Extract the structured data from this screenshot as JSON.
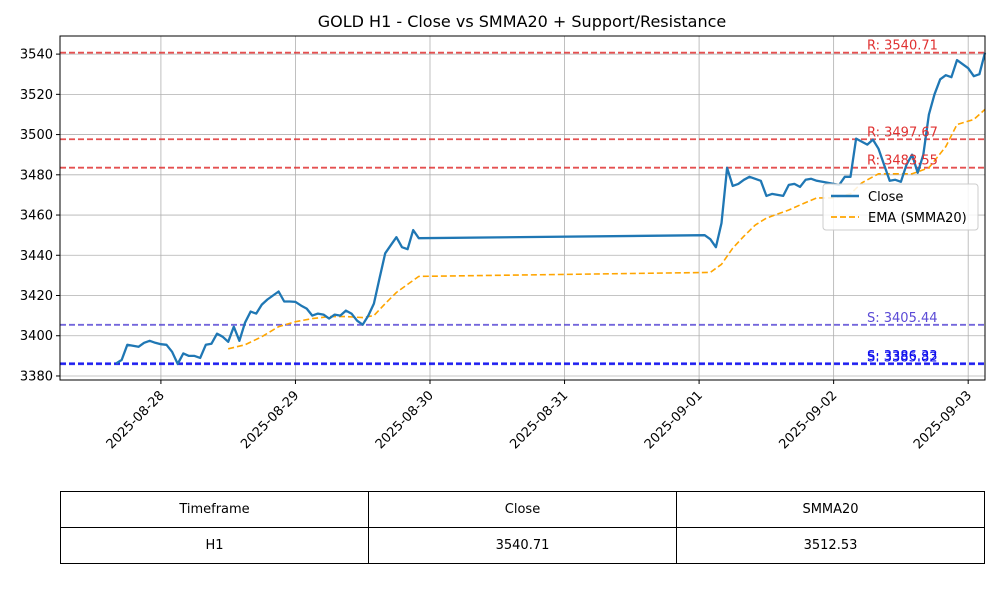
{
  "chart_data": {
    "type": "line",
    "title": "GOLD H1 - Close vs SMMA20 + Support/Resistance",
    "xlabel": "",
    "ylabel": "",
    "x_range": [
      "2025-08-27T06:00",
      "2025-09-03T03:00"
    ],
    "ylim": [
      3378,
      3549
    ],
    "x_ticks": [
      "2025-08-28",
      "2025-08-29",
      "2025-08-30",
      "2025-08-31",
      "2025-09-01",
      "2025-09-02",
      "2025-09-03"
    ],
    "y_ticks": [
      3380,
      3400,
      3420,
      3440,
      3460,
      3480,
      3500,
      3520,
      3540
    ],
    "grid": true,
    "legend_position": "right",
    "series": [
      {
        "name": "Close",
        "color": "#1f77b4",
        "style": "solid",
        "points": [
          [
            "2025-08-27T16:00",
            3386.2
          ],
          [
            "2025-08-27T17:00",
            3388.0
          ],
          [
            "2025-08-27T18:00",
            3395.5
          ],
          [
            "2025-08-27T19:00",
            3395.0
          ],
          [
            "2025-08-27T20:00",
            3394.5
          ],
          [
            "2025-08-27T21:00",
            3396.5
          ],
          [
            "2025-08-27T22:00",
            3397.5
          ],
          [
            "2025-08-27T23:00",
            3396.5
          ],
          [
            "2025-08-28T00:00",
            3395.8
          ],
          [
            "2025-08-28T01:00",
            3395.5
          ],
          [
            "2025-08-28T02:00",
            3392.0
          ],
          [
            "2025-08-28T03:00",
            3386.0
          ],
          [
            "2025-08-28T04:00",
            3391.2
          ],
          [
            "2025-08-28T05:00",
            3390.0
          ],
          [
            "2025-08-28T06:00",
            3390.0
          ],
          [
            "2025-08-28T07:00",
            3389.0
          ],
          [
            "2025-08-28T08:00",
            3395.5
          ],
          [
            "2025-08-28T09:00",
            3396.0
          ],
          [
            "2025-08-28T10:00",
            3401.0
          ],
          [
            "2025-08-28T11:00",
            3399.5
          ],
          [
            "2025-08-28T12:00",
            3397.0
          ],
          [
            "2025-08-28T13:00",
            3404.5
          ],
          [
            "2025-08-28T14:00",
            3397.5
          ],
          [
            "2025-08-28T15:00",
            3406.5
          ],
          [
            "2025-08-28T16:00",
            3412.0
          ],
          [
            "2025-08-28T17:00",
            3411.0
          ],
          [
            "2025-08-28T18:00",
            3415.5
          ],
          [
            "2025-08-28T19:00",
            3418.0
          ],
          [
            "2025-08-28T20:00",
            3420.0
          ],
          [
            "2025-08-28T21:00",
            3422.0
          ],
          [
            "2025-08-28T22:00",
            3417.0
          ],
          [
            "2025-08-28T23:00",
            3417.0
          ],
          [
            "2025-08-29T00:00",
            3416.8
          ],
          [
            "2025-08-29T01:00",
            3415.0
          ],
          [
            "2025-08-29T02:00",
            3413.5
          ],
          [
            "2025-08-29T03:00",
            3410.0
          ],
          [
            "2025-08-29T04:00",
            3411.0
          ],
          [
            "2025-08-29T05:00",
            3410.5
          ],
          [
            "2025-08-29T06:00",
            3408.5
          ],
          [
            "2025-08-29T07:00",
            3410.5
          ],
          [
            "2025-08-29T08:00",
            3410.0
          ],
          [
            "2025-08-29T09:00",
            3412.5
          ],
          [
            "2025-08-29T10:00",
            3411.0
          ],
          [
            "2025-08-29T11:00",
            3407.5
          ],
          [
            "2025-08-29T12:00",
            3405.5
          ],
          [
            "2025-08-29T13:00",
            3410.0
          ],
          [
            "2025-08-29T14:00",
            3416.0
          ],
          [
            "2025-08-29T15:00",
            3428.5
          ],
          [
            "2025-08-29T16:00",
            3441.0
          ],
          [
            "2025-08-29T17:00",
            3445.0
          ],
          [
            "2025-08-29T18:00",
            3449.0
          ],
          [
            "2025-08-29T19:00",
            3444.0
          ],
          [
            "2025-08-29T20:00",
            3443.0
          ],
          [
            "2025-08-29T21:00",
            3452.5
          ],
          [
            "2025-08-29T22:00",
            3448.5
          ],
          [
            "2025-09-01T01:00",
            3450.0
          ],
          [
            "2025-09-01T02:00",
            3448.0
          ],
          [
            "2025-09-01T03:00",
            3444.0
          ],
          [
            "2025-09-01T04:00",
            3456.0
          ],
          [
            "2025-09-01T05:00",
            3483.5
          ],
          [
            "2025-09-01T06:00",
            3474.5
          ],
          [
            "2025-09-01T07:00",
            3475.5
          ],
          [
            "2025-09-01T08:00",
            3477.5
          ],
          [
            "2025-09-01T09:00",
            3479.0
          ],
          [
            "2025-09-01T10:00",
            3478.0
          ],
          [
            "2025-09-01T11:00",
            3477.0
          ],
          [
            "2025-09-01T12:00",
            3469.5
          ],
          [
            "2025-09-01T13:00",
            3470.5
          ],
          [
            "2025-09-01T14:00",
            3470.0
          ],
          [
            "2025-09-01T15:00",
            3469.5
          ],
          [
            "2025-09-01T16:00",
            3475.0
          ],
          [
            "2025-09-01T17:00",
            3475.5
          ],
          [
            "2025-09-01T18:00",
            3474.0
          ],
          [
            "2025-09-01T19:00",
            3477.5
          ],
          [
            "2025-09-01T20:00",
            3478.0
          ],
          [
            "2025-09-01T21:00",
            3477.0
          ],
          [
            "2025-09-01T22:00",
            3476.5
          ],
          [
            "2025-09-02T00:00",
            3475.5
          ],
          [
            "2025-09-02T01:00",
            3475.0
          ],
          [
            "2025-09-02T02:00",
            3479.0
          ],
          [
            "2025-09-02T03:00",
            3479.0
          ],
          [
            "2025-09-02T04:00",
            3498.0
          ],
          [
            "2025-09-02T05:00",
            3496.5
          ],
          [
            "2025-09-02T06:00",
            3495.0
          ],
          [
            "2025-09-02T07:00",
            3497.5
          ],
          [
            "2025-09-02T08:00",
            3493.0
          ],
          [
            "2025-09-02T09:00",
            3485.0
          ],
          [
            "2025-09-02T10:00",
            3477.0
          ],
          [
            "2025-09-02T11:00",
            3477.5
          ],
          [
            "2025-09-02T12:00",
            3476.5
          ],
          [
            "2025-09-02T13:00",
            3485.0
          ],
          [
            "2025-09-02T14:00",
            3490.0
          ],
          [
            "2025-09-02T15:00",
            3481.0
          ],
          [
            "2025-09-02T16:00",
            3490.0
          ],
          [
            "2025-09-02T17:00",
            3510.0
          ],
          [
            "2025-09-02T18:00",
            3520.0
          ],
          [
            "2025-09-02T19:00",
            3527.5
          ],
          [
            "2025-09-02T20:00",
            3529.5
          ],
          [
            "2025-09-02T21:00",
            3528.5
          ],
          [
            "2025-09-02T22:00",
            3537.0
          ],
          [
            "2025-09-03T00:00",
            3533.0
          ],
          [
            "2025-09-03T01:00",
            3529.0
          ],
          [
            "2025-09-03T02:00",
            3530.0
          ],
          [
            "2025-09-03T03:00",
            3540.7
          ]
        ]
      },
      {
        "name": "EMA (SMMA20)",
        "color": "#ffa500",
        "style": "dashed",
        "points": [
          [
            "2025-08-28T12:00",
            3393.5
          ],
          [
            "2025-08-28T15:00",
            3395.5
          ],
          [
            "2025-08-28T18:00",
            3399.5
          ],
          [
            "2025-08-28T21:00",
            3404.5
          ],
          [
            "2025-08-29T00:00",
            3407.0
          ],
          [
            "2025-08-29T03:00",
            3408.5
          ],
          [
            "2025-08-29T06:00",
            3409.5
          ],
          [
            "2025-08-29T09:00",
            3409.5
          ],
          [
            "2025-08-29T12:00",
            3409.0
          ],
          [
            "2025-08-29T14:00",
            3410.0
          ],
          [
            "2025-08-29T16:00",
            3416.0
          ],
          [
            "2025-08-29T18:00",
            3421.5
          ],
          [
            "2025-08-29T20:00",
            3425.5
          ],
          [
            "2025-08-29T22:00",
            3429.5
          ],
          [
            "2025-09-01T02:00",
            3431.5
          ],
          [
            "2025-09-01T04:00",
            3435.5
          ],
          [
            "2025-09-01T06:00",
            3443.5
          ],
          [
            "2025-09-01T08:00",
            3449.5
          ],
          [
            "2025-09-01T10:00",
            3455.0
          ],
          [
            "2025-09-01T12:00",
            3458.5
          ],
          [
            "2025-09-01T14:00",
            3460.5
          ],
          [
            "2025-09-01T16:00",
            3462.5
          ],
          [
            "2025-09-01T18:00",
            3465.0
          ],
          [
            "2025-09-01T21:00",
            3468.5
          ],
          [
            "2025-09-02T00:00",
            3468.5
          ],
          [
            "2025-09-02T03:00",
            3470.5
          ],
          [
            "2025-09-02T05:00",
            3476.0
          ],
          [
            "2025-09-02T08:00",
            3480.5
          ],
          [
            "2025-09-02T11:00",
            3480.5
          ],
          [
            "2025-09-02T14:00",
            3480.5
          ],
          [
            "2025-09-02T17:00",
            3483.5
          ],
          [
            "2025-09-02T20:00",
            3494.0
          ],
          [
            "2025-09-02T22:00",
            3505.0
          ],
          [
            "2025-09-03T01:00",
            3507.5
          ],
          [
            "2025-09-03T03:00",
            3512.5
          ]
        ]
      }
    ],
    "levels": [
      {
        "kind": "resistance",
        "label": "R: 3540.71",
        "value": 3540.71,
        "color": "#e03131"
      },
      {
        "kind": "resistance",
        "label": "R: 3497.67",
        "value": 3497.67,
        "color": "#e03131"
      },
      {
        "kind": "resistance",
        "label": "R: 3483.55",
        "value": 3483.55,
        "color": "#e03131"
      },
      {
        "kind": "support",
        "label": "S: 3405.44",
        "value": 3405.44,
        "color": "#5b4bd6"
      },
      {
        "kind": "support",
        "label": "S: 3386.33",
        "value": 3386.33,
        "color": "#1010ee"
      },
      {
        "kind": "support",
        "label": "S: 3385.82",
        "value": 3385.82,
        "color": "#1010ee"
      }
    ]
  },
  "table": {
    "headers": [
      "Timeframe",
      "Close",
      "SMMA20"
    ],
    "row": [
      "H1",
      "3540.71",
      "3512.53"
    ]
  }
}
